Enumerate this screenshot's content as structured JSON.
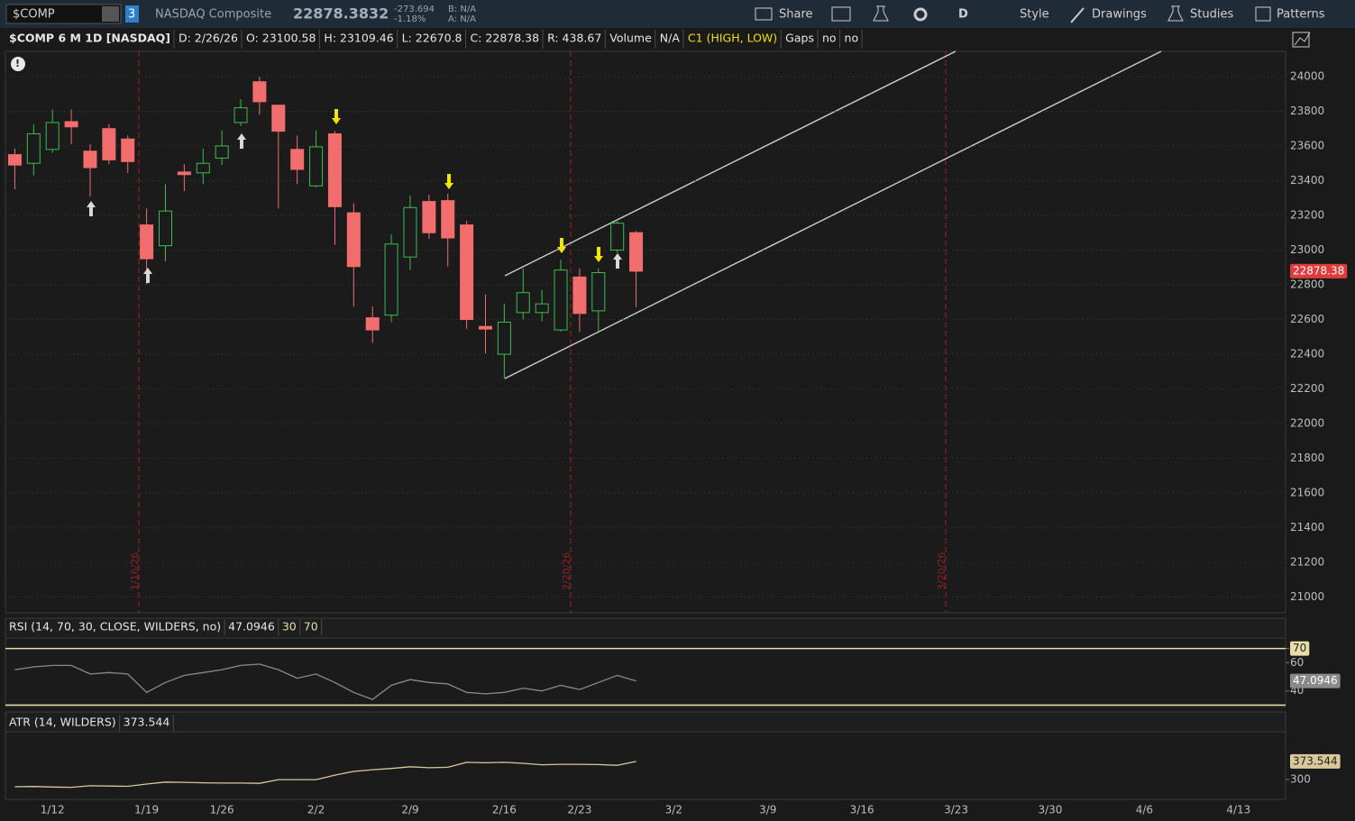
{
  "toolbar": {
    "symbol": "$COMP",
    "badge": "3",
    "name": "NASDAQ Composite",
    "last": "22878.3832",
    "change": "-273.694",
    "change_pct": "-1.18%",
    "bid": "B: N/A",
    "ask": "A: N/A",
    "buttons": [
      "Share",
      "D",
      "Style",
      "Drawings",
      "Studies",
      "Patterns"
    ]
  },
  "status_bar": [
    "$COMP 6 M 1D [NASDAQ]",
    "D: 2/26/26",
    "O: 23100.58",
    "H: 23109.46",
    "L: 22670.8",
    "C: 22878.38",
    "R: 438.67",
    "Volume",
    "N/A",
    "C1 (HIGH, LOW)",
    "Gaps",
    "no",
    "no"
  ],
  "chart_data": [
    {
      "type": "candlestick",
      "up_color": "#3dbb4e",
      "down_color": "#f26d6d",
      "grid": true,
      "events": [
        "1/16/26",
        "2/20/26",
        "3/20/26"
      ],
      "categories": [
        null,
        null,
        "1/12",
        null,
        null,
        null,
        null,
        "1/19",
        null,
        null,
        null,
        "1/26",
        null,
        null,
        null,
        null,
        "2/2",
        null,
        null,
        null,
        null,
        "2/9",
        null,
        null,
        null,
        null,
        "2/16",
        null,
        null,
        null,
        "2/23",
        null,
        null,
        null,
        null,
        "3/2",
        null,
        null,
        null,
        null,
        "3/9",
        null,
        null,
        null,
        null,
        "3/16",
        null,
        null,
        null,
        null,
        "3/23",
        null,
        null,
        null,
        null,
        "3/30",
        null,
        null,
        null,
        null,
        "4/6",
        null,
        null,
        null,
        null,
        "4/13",
        null,
        null
      ],
      "open": [
        23550,
        23500,
        23580,
        23740,
        23570,
        23700,
        23640,
        23145,
        23025,
        23450,
        23445,
        23530,
        23735,
        23970,
        23835,
        23580,
        23370,
        23670,
        23215,
        22610,
        22625,
        22960,
        23280,
        23285,
        23145,
        22560,
        22400,
        22640,
        22640,
        22540,
        22845,
        22650,
        23000,
        23100.58,
        null,
        null,
        null,
        null,
        null,
        null,
        null,
        null,
        null,
        null,
        null,
        null,
        null,
        null,
        null,
        null,
        null,
        null,
        null,
        null,
        null,
        null,
        null,
        null,
        null,
        null,
        null,
        null,
        null,
        null,
        null,
        null,
        null,
        null
      ],
      "high": [
        23585,
        23725,
        23810,
        23810,
        23610,
        23725,
        23660,
        23240,
        23380,
        23495,
        23585,
        23690,
        23870,
        24000,
        23835,
        23660,
        23690,
        23685,
        23270,
        22675,
        23090,
        23315,
        23320,
        23325,
        23170,
        22745,
        22690,
        22895,
        22770,
        22945,
        22895,
        22895,
        23180,
        23109.46,
        null,
        null,
        null,
        null,
        null,
        null,
        null,
        null,
        null,
        null,
        null,
        null,
        null,
        null,
        null,
        null,
        null,
        null,
        null,
        null,
        null,
        null,
        null,
        null,
        null,
        null,
        null,
        null,
        null,
        null,
        null,
        null,
        null,
        null
      ],
      "low": [
        23350,
        23430,
        23560,
        23610,
        23310,
        23495,
        23445,
        22805,
        22935,
        23340,
        23380,
        23490,
        23715,
        23780,
        23240,
        23380,
        23360,
        23030,
        22675,
        22465,
        22585,
        22885,
        23065,
        22905,
        22545,
        22405,
        22260,
        22600,
        22590,
        22530,
        22530,
        22530,
        22985,
        22670.8,
        null,
        null,
        null,
        null,
        null,
        null,
        null,
        null,
        null,
        null,
        null,
        null,
        null,
        null,
        null,
        null,
        null,
        null,
        null,
        null,
        null,
        null,
        null,
        null,
        null,
        null,
        null,
        null,
        null,
        null,
        null,
        null,
        null,
        null
      ],
      "close": [
        23490,
        23670,
        23735,
        23710,
        23475,
        23520,
        23510,
        22950,
        23225,
        23435,
        23500,
        23600,
        23820,
        23855,
        23685,
        23465,
        23595,
        23250,
        22905,
        22540,
        23035,
        23245,
        23100,
        23070,
        22600,
        22545,
        22585,
        22755,
        22690,
        22885,
        22635,
        22870,
        23155,
        22878.38,
        null,
        null,
        null,
        null,
        null,
        null,
        null,
        null,
        null,
        null,
        null,
        null,
        null,
        null,
        null,
        null,
        null,
        null,
        null,
        null,
        null,
        null,
        null,
        null,
        null,
        null,
        null,
        null,
        null,
        null,
        null,
        null,
        null,
        null
      ],
      "ylim": [
        20910,
        24145
      ],
      "yticks": [
        21000,
        21200,
        21400,
        21600,
        21800,
        22000,
        22200,
        22400,
        22600,
        22800,
        23000,
        23200,
        23400,
        23600,
        23800,
        24000
      ]
    },
    {
      "type": "line",
      "title": "RSI (14, 70, 30, CLOSE, WILDERS, no)",
      "color": "#8a8a8a",
      "level_color": "#e8dca8",
      "levels": [
        70,
        30
      ],
      "values": [
        55,
        57,
        58,
        58,
        52,
        53,
        52,
        39,
        46,
        51,
        53,
        55,
        58,
        59,
        55,
        49,
        52,
        46,
        39,
        34,
        44,
        48,
        46,
        45,
        39,
        38,
        39,
        42,
        40,
        44,
        41,
        46,
        51,
        47.0946,
        null,
        null,
        null,
        null,
        null,
        null,
        null,
        null,
        null,
        null,
        null,
        null,
        null,
        null,
        null,
        null,
        null,
        null,
        null,
        null,
        null,
        null,
        null,
        null,
        null,
        null,
        null,
        null,
        null,
        null,
        null,
        null,
        null,
        null
      ],
      "ylim": [
        29,
        78
      ],
      "yticks": [
        40,
        60,
        70
      ]
    },
    {
      "type": "line",
      "title": "ATR (14, WILDERS)",
      "color": "#d8c89a",
      "values": [
        271,
        272,
        270,
        269,
        275,
        274,
        273,
        282,
        290,
        289,
        287,
        286,
        286,
        285,
        300,
        300,
        300,
        318,
        333,
        340,
        345,
        352,
        348,
        350,
        370,
        368,
        370,
        366,
        360,
        362,
        362,
        361,
        358,
        373.544,
        null,
        null,
        null,
        null,
        null,
        null,
        null,
        null,
        null,
        null,
        null,
        null,
        null,
        null,
        null,
        null,
        null,
        null,
        null,
        null,
        null,
        null,
        null,
        null,
        null,
        null,
        null,
        null,
        null,
        null,
        null,
        null,
        null,
        null
      ],
      "ylim": [
        220,
        490
      ],
      "yticks": [
        300
      ]
    }
  ]
}
